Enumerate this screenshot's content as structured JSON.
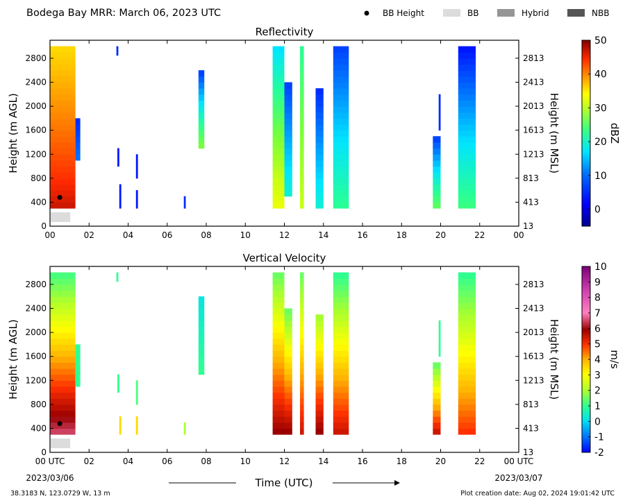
{
  "header": {
    "title": "Bodega Bay MRR:  March 06, 2023 UTC",
    "legend": [
      {
        "label": "BB Height",
        "marker": "dot",
        "color": "#000000"
      },
      {
        "label": "BB",
        "marker": "swatch",
        "color": "#dcdcdc"
      },
      {
        "label": "Hybrid",
        "marker": "swatch",
        "color": "#959595"
      },
      {
        "label": "NBB",
        "marker": "swatch",
        "color": "#555555"
      }
    ]
  },
  "footer": {
    "location": "38.3183 N, 123.0729 W, 13 m",
    "creation": "Plot creation date: Aug 02, 2024 19:01:42 UTC",
    "time_label": "Time (UTC)"
  },
  "chart_data": [
    {
      "type": "heatmap",
      "title": "Reflectivity",
      "xlabel": "",
      "ylabel": "Height (m AGL)",
      "ylabel_right": "Height (m MSL)",
      "xlim": [
        0,
        24
      ],
      "ylim": [
        0,
        3100
      ],
      "x_ticks": [
        "00",
        "02",
        "04",
        "06",
        "08",
        "10",
        "12",
        "14",
        "16",
        "18",
        "20",
        "22",
        "00"
      ],
      "y_ticks": [
        0,
        400,
        800,
        1200,
        1600,
        2000,
        2400,
        2800
      ],
      "y_ticks_right": [
        13,
        413,
        813,
        1213,
        1613,
        2013,
        2413,
        2813
      ],
      "colorbar": {
        "label": "dBZ",
        "min": -5,
        "max": 50,
        "ticks": [
          0,
          10,
          20,
          30,
          40,
          50
        ]
      },
      "bright_band_height": [
        {
          "x": 0.5,
          "y": 480
        }
      ],
      "bb_type_bar": [
        {
          "x0": 0.0,
          "x1": 1.0,
          "kind": "BB"
        }
      ],
      "echo_columns": [
        {
          "x0": 0.0,
          "x1": 1.3,
          "y0": 300,
          "y1": 3000,
          "v_bottom": 47,
          "v_top": 33
        },
        {
          "x0": 1.3,
          "x1": 1.55,
          "y0": 1100,
          "y1": 1800,
          "v_bottom": 5,
          "v_top": 2
        },
        {
          "x0": 3.4,
          "x1": 3.5,
          "y0": 2850,
          "y1": 3000,
          "v_bottom": 2,
          "v_top": 2
        },
        {
          "x0": 3.45,
          "x1": 3.55,
          "y0": 1000,
          "y1": 1300,
          "v_bottom": 1,
          "v_top": 1
        },
        {
          "x0": 3.55,
          "x1": 3.65,
          "y0": 300,
          "y1": 700,
          "v_bottom": 1,
          "v_top": 1
        },
        {
          "x0": 4.4,
          "x1": 4.5,
          "y0": 800,
          "y1": 1200,
          "v_bottom": 1,
          "v_top": 1
        },
        {
          "x0": 4.4,
          "x1": 4.5,
          "y0": 300,
          "y1": 600,
          "v_bottom": 1,
          "v_top": 1
        },
        {
          "x0": 6.85,
          "x1": 6.95,
          "y0": 300,
          "y1": 500,
          "v_bottom": 2,
          "v_top": 2
        },
        {
          "x0": 7.6,
          "x1": 7.9,
          "y0": 1300,
          "y1": 2600,
          "v_bottom": 20,
          "v_top": 3
        },
        {
          "x0": 11.4,
          "x1": 12.0,
          "y0": 300,
          "y1": 3000,
          "v_bottom": 28,
          "v_top": 10
        },
        {
          "x0": 12.0,
          "x1": 12.4,
          "y0": 500,
          "y1": 2400,
          "v_bottom": 12,
          "v_top": 3
        },
        {
          "x0": 12.8,
          "x1": 13.0,
          "y0": 300,
          "y1": 3000,
          "v_bottom": 25,
          "v_top": 15
        },
        {
          "x0": 13.6,
          "x1": 14.0,
          "y0": 300,
          "y1": 2300,
          "v_bottom": 12,
          "v_top": 2
        },
        {
          "x0": 14.5,
          "x1": 15.3,
          "y0": 300,
          "y1": 3000,
          "v_bottom": 15,
          "v_top": 3
        },
        {
          "x0": 19.6,
          "x1": 20.0,
          "y0": 300,
          "y1": 1500,
          "v_bottom": 18,
          "v_top": 3
        },
        {
          "x0": 19.9,
          "x1": 20.0,
          "y0": 1600,
          "y1": 2200,
          "v_bottom": 2,
          "v_top": 2
        },
        {
          "x0": 20.9,
          "x1": 21.8,
          "y0": 300,
          "y1": 3000,
          "v_bottom": 16,
          "v_top": 1
        }
      ]
    },
    {
      "type": "heatmap",
      "title": "Vertical Velocity",
      "xlabel": "Time (UTC)",
      "ylabel": "Height (m AGL)",
      "ylabel_right": "Height (m MSL)",
      "xlim": [
        0,
        24
      ],
      "ylim": [
        0,
        3100
      ],
      "x_ticks": [
        "00 UTC",
        "02",
        "04",
        "06",
        "08",
        "10",
        "12",
        "14",
        "16",
        "18",
        "20",
        "22",
        "00 UTC"
      ],
      "x_date_start": "2023/03/06",
      "x_date_end": "2023/03/07",
      "y_ticks": [
        0,
        400,
        800,
        1200,
        1600,
        2000,
        2400,
        2800
      ],
      "y_ticks_right": [
        13,
        413,
        813,
        1213,
        1613,
        2013,
        2413,
        2813
      ],
      "colorbar": {
        "label": "m/s",
        "min": -2,
        "max": 10,
        "ticks": [
          -2,
          -1,
          0,
          1,
          2,
          3,
          4,
          5,
          6,
          7,
          8,
          9,
          10
        ]
      },
      "bright_band_height": [
        {
          "x": 0.5,
          "y": 480
        }
      ],
      "bb_type_bar": [
        {
          "x0": 0.0,
          "x1": 1.0,
          "kind": "BB"
        }
      ],
      "echo_columns": [
        {
          "x0": 0.0,
          "x1": 1.3,
          "y0": 300,
          "y1": 3000,
          "v_bottom": 6.5,
          "v_top": 1.2
        },
        {
          "x0": 1.3,
          "x1": 1.55,
          "y0": 1100,
          "y1": 1800,
          "v_bottom": 1,
          "v_top": 1
        },
        {
          "x0": 3.4,
          "x1": 3.5,
          "y0": 2850,
          "y1": 3000,
          "v_bottom": 1,
          "v_top": 1
        },
        {
          "x0": 3.45,
          "x1": 3.55,
          "y0": 1000,
          "y1": 1300,
          "v_bottom": 1,
          "v_top": 1
        },
        {
          "x0": 3.55,
          "x1": 3.65,
          "y0": 300,
          "y1": 600,
          "v_bottom": 3.5,
          "v_top": 3.5
        },
        {
          "x0": 4.4,
          "x1": 4.5,
          "y0": 800,
          "y1": 1200,
          "v_bottom": 1.2,
          "v_top": 1.2
        },
        {
          "x0": 4.4,
          "x1": 4.5,
          "y0": 300,
          "y1": 600,
          "v_bottom": 3.5,
          "v_top": 3.5
        },
        {
          "x0": 6.85,
          "x1": 6.95,
          "y0": 300,
          "y1": 500,
          "v_bottom": 2,
          "v_top": 2
        },
        {
          "x0": 7.6,
          "x1": 7.9,
          "y0": 1300,
          "y1": 2600,
          "v_bottom": 1,
          "v_top": 0.2
        },
        {
          "x0": 11.4,
          "x1": 12.0,
          "y0": 300,
          "y1": 3000,
          "v_bottom": 6,
          "v_top": 1.5
        },
        {
          "x0": 12.0,
          "x1": 12.4,
          "y0": 300,
          "y1": 2400,
          "v_bottom": 6,
          "v_top": 1.5
        },
        {
          "x0": 12.8,
          "x1": 13.0,
          "y0": 300,
          "y1": 3000,
          "v_bottom": 5.5,
          "v_top": 1.5
        },
        {
          "x0": 13.6,
          "x1": 14.0,
          "y0": 300,
          "y1": 2300,
          "v_bottom": 6,
          "v_top": 2
        },
        {
          "x0": 14.5,
          "x1": 15.3,
          "y0": 300,
          "y1": 3000,
          "v_bottom": 5.5,
          "v_top": 1
        },
        {
          "x0": 19.6,
          "x1": 20.0,
          "y0": 300,
          "y1": 1500,
          "v_bottom": 5.5,
          "v_top": 1.5
        },
        {
          "x0": 19.9,
          "x1": 20.0,
          "y0": 1600,
          "y1": 2200,
          "v_bottom": 1,
          "v_top": 1
        },
        {
          "x0": 20.9,
          "x1": 21.8,
          "y0": 300,
          "y1": 3000,
          "v_bottom": 5,
          "v_top": 1
        }
      ]
    }
  ]
}
